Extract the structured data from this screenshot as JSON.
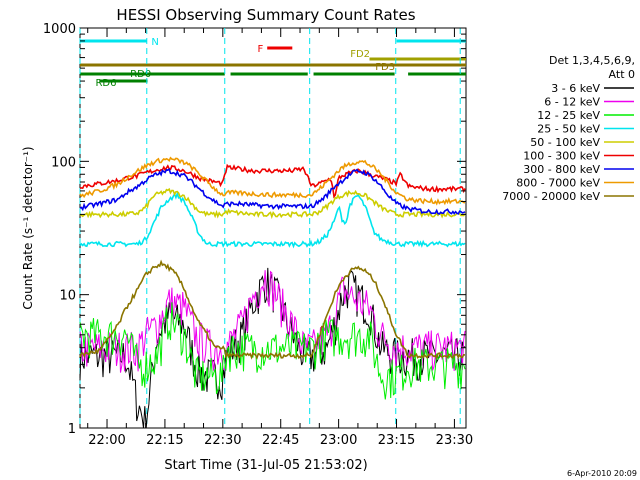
{
  "chart_data": {
    "type": "line",
    "title": "HESSI Observing Summary Count Rates",
    "xlabel": "Start Time (31-Jul-05 21:53:02)",
    "ylabel": "Count Rate (s⁻¹ detector⁻¹)",
    "x_ticks": [
      "22:00",
      "22:15",
      "22:30",
      "22:45",
      "23:00",
      "23:15",
      "23:30"
    ],
    "x_range_minutes": [
      0,
      100
    ],
    "yscale": "log",
    "ylim": [
      1,
      1000
    ],
    "y_ticks": [
      "1",
      "10",
      "100",
      "1000"
    ],
    "legend_position": "right",
    "detector_label": "Det 1,3,4,5,6,9,",
    "attenuator_label": "Att 0",
    "date_stamp": "6-Apr-2010 20:09",
    "flags": [
      {
        "label": "N",
        "color": "#00e5ee",
        "segments": [
          [
            0,
            17.3
          ],
          [
            82,
            100
          ]
        ]
      },
      {
        "label": "F",
        "color": "#ee0000",
        "segments": [
          [
            48.5,
            55
          ]
        ]
      },
      {
        "label": "FD2",
        "color": "#a0a000",
        "segments": [
          [
            75,
            100
          ]
        ]
      },
      {
        "label": "FD3",
        "color": "#8b7500",
        "segments": [
          [
            0,
            100
          ]
        ]
      },
      {
        "label": "RD0",
        "color": "#008000",
        "segments": [
          [
            0,
            37.5
          ],
          [
            39,
            59
          ],
          [
            60.5,
            81.5
          ],
          [
            85,
            100
          ]
        ]
      },
      {
        "label": "RD6",
        "color": "#008000",
        "segments": [
          [
            5,
            17.5
          ]
        ]
      }
    ],
    "saa_lines_minutes": [
      0,
      17.3,
      37.5,
      59.5,
      81.8,
      98.5
    ],
    "series": [
      {
        "name": "3 - 6 keV",
        "color": "#000000",
        "x": [
          0,
          7,
          12,
          15,
          17,
          20,
          23,
          27,
          30,
          32,
          34,
          37,
          38,
          42,
          45,
          48,
          51,
          55,
          58,
          60,
          64,
          66,
          68,
          70,
          72,
          75,
          78,
          82,
          85,
          88,
          90,
          95,
          100
        ],
        "y": [
          3.5,
          3.5,
          3.5,
          1.5,
          1.1,
          5,
          7,
          6,
          3,
          2.5,
          2.5,
          2.5,
          3.5,
          5,
          9,
          13,
          10,
          5,
          3.5,
          3.5,
          4,
          6,
          10,
          12,
          10,
          8,
          4,
          3.5,
          3.5,
          3.5,
          3.5,
          3.5,
          3.5
        ]
      },
      {
        "name": "6 - 12 keV",
        "color": "#ee00ee",
        "x": [
          0,
          7,
          12,
          15,
          17,
          20,
          23,
          27,
          30,
          34,
          37,
          38,
          42,
          45,
          48,
          51,
          55,
          58,
          60,
          64,
          66,
          68,
          70,
          72,
          75,
          78,
          82,
          85,
          90,
          95,
          100
        ],
        "y": [
          4,
          4,
          4,
          4,
          5,
          6,
          9,
          8,
          5,
          4,
          4,
          4,
          6,
          10,
          14,
          10,
          6,
          4,
          4,
          5,
          7,
          11,
          10,
          9,
          8,
          5,
          4,
          4,
          4,
          4,
          4
        ]
      },
      {
        "name": "12 - 25 keV",
        "color": "#00ee00",
        "x": [
          0,
          7,
          12,
          15,
          17,
          20,
          23,
          27,
          30,
          34,
          37,
          38,
          42,
          45,
          48,
          51,
          55,
          58,
          60,
          64,
          68,
          72,
          75,
          78,
          82,
          85,
          90,
          95,
          100
        ],
        "y": [
          5,
          5,
          5,
          3,
          3,
          3.5,
          7,
          5,
          2.5,
          2.5,
          2.5,
          4,
          4,
          4,
          4,
          4,
          4,
          4,
          4,
          5,
          5,
          5,
          5,
          2.5,
          2.5,
          3,
          3,
          3,
          3
        ]
      },
      {
        "name": "25 - 50 keV",
        "color": "#00e5ee",
        "x": [
          0,
          5,
          10,
          12,
          15,
          17,
          19,
          21,
          23,
          25,
          27,
          29,
          31,
          33,
          35,
          37,
          38,
          41,
          45,
          50,
          55,
          58,
          60,
          62,
          64,
          66,
          67,
          68,
          69,
          70,
          72,
          74,
          76,
          78,
          80,
          82,
          85,
          90,
          95,
          100
        ],
        "y": [
          24,
          24,
          24,
          24,
          24,
          26,
          34,
          45,
          52,
          56,
          50,
          38,
          28,
          24,
          24,
          24,
          24,
          24,
          24,
          24,
          24,
          24,
          24,
          25,
          28,
          36,
          46,
          36,
          35,
          48,
          56,
          45,
          30,
          26,
          25,
          24,
          24,
          24,
          24,
          24
        ]
      },
      {
        "name": "50 - 100 keV",
        "color": "#cdcd00",
        "x": [
          0,
          5,
          10,
          12,
          15,
          17,
          19,
          21,
          23,
          25,
          27,
          29,
          31,
          33,
          35,
          37,
          38,
          41,
          45,
          50,
          55,
          58,
          60,
          62,
          64,
          66,
          68,
          70,
          72,
          74,
          76,
          78,
          80,
          82,
          85,
          90,
          95,
          100
        ],
        "y": [
          40,
          40,
          40,
          40,
          41,
          45,
          55,
          58,
          60,
          58,
          55,
          48,
          42,
          40,
          40,
          40,
          42,
          41,
          40,
          40,
          40,
          40,
          40,
          42,
          46,
          52,
          56,
          58,
          58,
          55,
          50,
          45,
          42,
          40,
          40,
          40,
          40,
          40
        ]
      },
      {
        "name": "100 - 300 keV",
        "color": "#ee0000",
        "x": [
          0,
          5,
          10,
          12,
          15,
          17,
          19,
          21,
          23,
          25,
          27,
          29,
          31,
          33,
          35,
          37,
          38,
          41,
          45,
          50,
          55,
          58,
          60,
          62,
          64,
          65,
          66,
          67,
          68,
          70,
          72,
          74,
          76,
          78,
          80,
          82,
          83,
          85,
          90,
          95,
          100
        ],
        "y": [
          65,
          68,
          72,
          75,
          78,
          82,
          85,
          88,
          90,
          88,
          85,
          80,
          75,
          72,
          70,
          68,
          90,
          88,
          85,
          85,
          85,
          88,
          65,
          68,
          72,
          75,
          52,
          75,
          78,
          82,
          85,
          82,
          78,
          75,
          72,
          68,
          80,
          65,
          62,
          62,
          62
        ]
      },
      {
        "name": "300 - 800 keV",
        "color": "#0000ee",
        "x": [
          0,
          5,
          10,
          12,
          15,
          17,
          19,
          21,
          23,
          25,
          27,
          29,
          31,
          33,
          35,
          37,
          38,
          41,
          45,
          50,
          55,
          58,
          60,
          62,
          64,
          66,
          68,
          70,
          72,
          74,
          76,
          78,
          80,
          82,
          85,
          90,
          95,
          100
        ],
        "y": [
          45,
          48,
          52,
          58,
          65,
          72,
          78,
          82,
          85,
          82,
          78,
          70,
          62,
          55,
          50,
          46,
          48,
          48,
          47,
          46,
          46,
          46,
          46,
          50,
          56,
          65,
          72,
          80,
          85,
          82,
          75,
          65,
          55,
          48,
          44,
          42,
          42,
          42
        ]
      },
      {
        "name": "800 - 7000 keV",
        "color": "#ee9a00",
        "x": [
          0,
          5,
          10,
          12,
          15,
          17,
          19,
          21,
          23,
          25,
          27,
          29,
          31,
          33,
          35,
          37,
          38,
          41,
          45,
          50,
          55,
          58,
          60,
          62,
          64,
          66,
          68,
          70,
          72,
          74,
          76,
          78,
          80,
          82,
          85,
          90,
          95,
          100
        ],
        "y": [
          55,
          60,
          68,
          75,
          85,
          92,
          98,
          102,
          104,
          102,
          98,
          90,
          80,
          70,
          62,
          56,
          58,
          58,
          57,
          56,
          56,
          56,
          56,
          62,
          70,
          80,
          90,
          96,
          100,
          98,
          90,
          80,
          68,
          58,
          52,
          50,
          50,
          50
        ]
      },
      {
        "name": "7000 - 20000 keV",
        "color": "#8b7500",
        "x": [
          0,
          5,
          7,
          10,
          12,
          15,
          17,
          19,
          21,
          23,
          25,
          27,
          29,
          31,
          33,
          35,
          37,
          38,
          41,
          45,
          50,
          55,
          58,
          60,
          62,
          64,
          66,
          68,
          70,
          72,
          74,
          76,
          78,
          80,
          82,
          85,
          90,
          95,
          100
        ],
        "y": [
          3.5,
          3.8,
          4.5,
          6,
          8,
          11,
          14,
          16,
          17,
          16,
          14,
          11,
          8,
          6,
          5,
          4,
          4,
          3.5,
          3.5,
          3.5,
          3.5,
          3.5,
          3.5,
          3.5,
          5,
          7,
          10,
          13,
          15,
          16,
          15,
          13,
          10,
          7,
          5,
          3.5,
          3.5,
          3.5,
          3.5
        ]
      }
    ]
  }
}
